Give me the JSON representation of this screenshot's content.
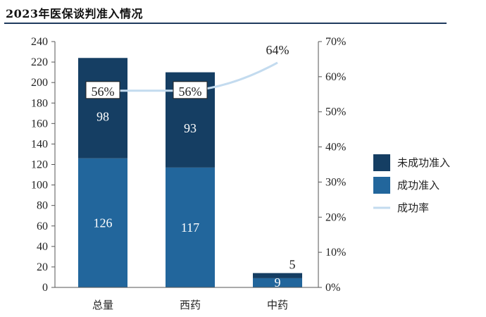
{
  "page": {
    "title": "2023年医保谈判准入情况"
  },
  "colors": {
    "unsuccessful": "#153e63",
    "successful": "#22669c",
    "rate": "#c3dbef",
    "axis": "#555555"
  },
  "chart_data": {
    "type": "bar",
    "stacked": true,
    "categories": [
      "总量",
      "西药",
      "中药"
    ],
    "series": [
      {
        "name": "成功准入",
        "values": [
          126,
          117,
          9
        ],
        "labels": [
          "126",
          "117",
          "9"
        ]
      },
      {
        "name": "未成功准入",
        "values": [
          98,
          93,
          5
        ],
        "labels": [
          "98",
          "93",
          "5"
        ]
      }
    ],
    "line_series": {
      "name": "成功率",
      "values": [
        56,
        56,
        64
      ],
      "labels": [
        "56%",
        "56%",
        "64%"
      ],
      "axis": "right"
    },
    "y_left": {
      "min": 0,
      "max": 240,
      "ticks": [
        "0",
        "20",
        "40",
        "60",
        "80",
        "100",
        "120",
        "140",
        "160",
        "180",
        "200",
        "220",
        "240"
      ]
    },
    "y_right": {
      "min": 0,
      "max": 70,
      "ticks": [
        "0%",
        "10%",
        "20%",
        "30%",
        "40%",
        "50%",
        "60%",
        "70%"
      ]
    },
    "legend": [
      "未成功准入",
      "成功准入",
      "成功率"
    ],
    "legend_position": "right"
  }
}
